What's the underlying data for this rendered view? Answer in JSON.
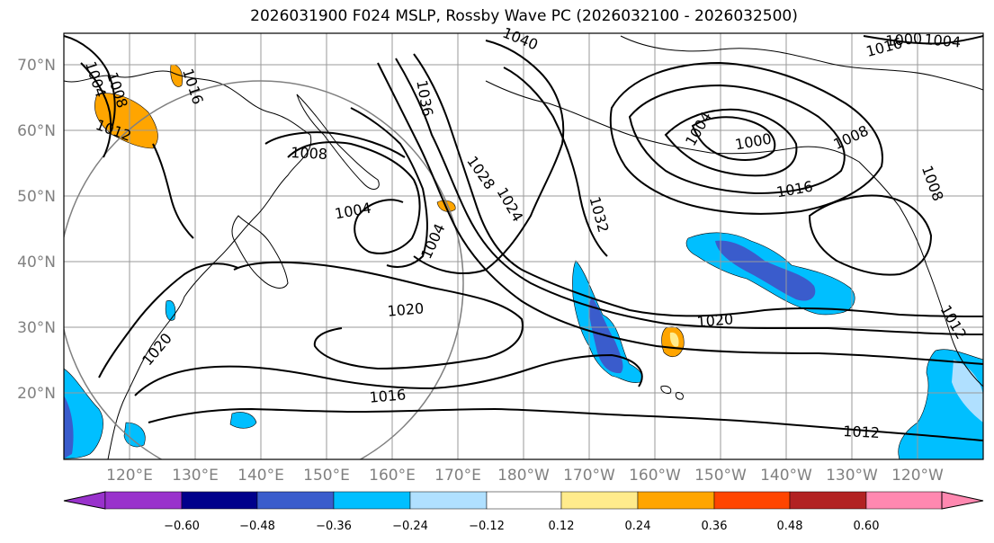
{
  "title": "2026031900 F024 MSLP, Rossby Wave PC (2026032100 - 2026032500)",
  "axes": {
    "lat_labels": [
      "70°N",
      "60°N",
      "50°N",
      "40°N",
      "30°N",
      "20°N"
    ],
    "lon_labels": [
      "120°E",
      "130°E",
      "140°E",
      "150°E",
      "160°E",
      "170°E",
      "180°W",
      "170°W",
      "160°W",
      "150°W",
      "140°W",
      "130°W",
      "120°W"
    ]
  },
  "isobar_labels": [
    "1040",
    "1004",
    "1008",
    "1016",
    "1012",
    "1036",
    "1008",
    "1004",
    "1004",
    "1028",
    "1024",
    "1032",
    "1000",
    "1004",
    "1008",
    "1016",
    "1020",
    "1020",
    "1020",
    "1016",
    "1012",
    "1008",
    "1012",
    "1016",
    "1000",
    "1004"
  ],
  "colorbar": {
    "tick_labels": [
      "−0.60",
      "−0.48",
      "−0.36",
      "−0.24",
      "−0.12",
      "0.12",
      "0.24",
      "0.36",
      "0.48",
      "0.60"
    ],
    "colors": [
      "#9932cc",
      "#00008b",
      "#3a5ccc",
      "#00bfff",
      "#b0e0ff",
      "#ffffff",
      "#ffeb8c",
      "#ffa500",
      "#ff4500",
      "#b22222",
      "#ff88b0"
    ]
  },
  "shading_colors": {
    "neg_light": "#00bfff",
    "neg_mid": "#3a5ccc",
    "pos_light": "#ffa500",
    "pos_pale": "#ffeb8c"
  }
}
